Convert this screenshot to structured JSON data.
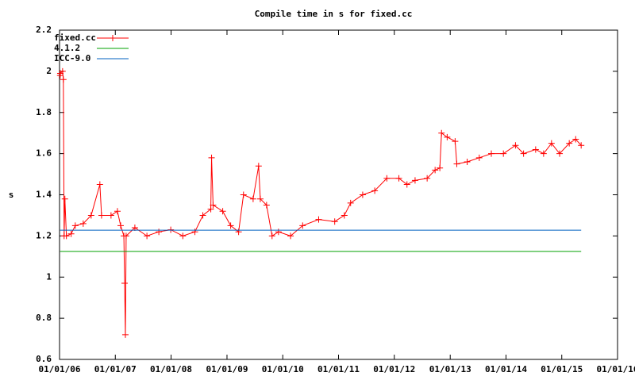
{
  "chart_data": {
    "type": "line",
    "title": "Compile time in s for fixed.cc",
    "y_label": "s",
    "xlim": [
      "2006-01-01",
      "2016-01-01"
    ],
    "xticks": [
      {
        "value": "2006-01-01",
        "label": "01/01/06"
      },
      {
        "value": "2007-01-01",
        "label": "01/01/07"
      },
      {
        "value": "2008-01-01",
        "label": "01/01/08"
      },
      {
        "value": "2009-01-01",
        "label": "01/01/09"
      },
      {
        "value": "2010-01-01",
        "label": "01/01/10"
      },
      {
        "value": "2011-01-01",
        "label": "01/01/11"
      },
      {
        "value": "2012-01-01",
        "label": "01/01/12"
      },
      {
        "value": "2013-01-01",
        "label": "01/01/13"
      },
      {
        "value": "2014-01-01",
        "label": "01/01/14"
      },
      {
        "value": "2015-01-01",
        "label": "01/01/15"
      },
      {
        "value": "2016-01-01",
        "label": "01/01/16"
      }
    ],
    "ylim": [
      0.6,
      2.2
    ],
    "yticks": [
      0.6,
      0.8,
      1,
      1.2,
      1.4,
      1.6,
      1.8,
      2,
      2.2
    ],
    "grid": false,
    "legend": "top-left",
    "series": [
      {
        "name": "fixed.cc",
        "color": "#ff0000",
        "markers": true,
        "x": [
          "2006-01-05",
          "2006-01-06",
          "2006-01-21",
          "2006-01-26",
          "2006-01-31",
          "2006-02-05",
          "2006-02-15",
          "2006-03-18",
          "2006-04-14",
          "2006-06-05",
          "2006-07-27",
          "2006-09-22",
          "2006-10-03",
          "2006-12-04",
          "2007-01-15",
          "2007-02-05",
          "2007-02-26",
          "2007-03-03",
          "2007-03-08",
          "2007-03-13",
          "2007-05-09",
          "2007-07-27",
          "2007-10-13",
          "2007-12-30",
          "2008-03-18",
          "2008-06-05",
          "2008-07-27",
          "2008-09-17",
          "2008-09-22",
          "2008-10-02",
          "2008-12-04",
          "2009-01-25",
          "2009-03-18",
          "2009-04-19",
          "2009-06-21",
          "2009-07-27",
          "2009-08-07",
          "2009-09-17",
          "2009-10-23",
          "2009-12-04",
          "2010-02-21",
          "2010-05-11",
          "2010-08-24",
          "2010-12-07",
          "2011-02-08",
          "2011-03-21",
          "2011-06-08",
          "2011-08-26",
          "2011-11-13",
          "2012-01-31",
          "2012-03-24",
          "2012-05-16",
          "2012-08-03",
          "2012-09-24",
          "2012-10-25",
          "2012-11-05",
          "2012-12-12",
          "2013-02-02",
          "2013-02-13",
          "2013-04-22",
          "2013-07-10",
          "2013-09-27",
          "2013-12-15",
          "2014-03-04",
          "2014-04-26",
          "2014-07-14",
          "2014-09-04",
          "2014-10-26",
          "2014-12-18",
          "2015-02-19",
          "2015-04-02",
          "2015-05-08"
        ],
        "values": [
          1.98,
          1.99,
          2.0,
          1.96,
          1.2,
          1.38,
          1.2,
          1.21,
          1.25,
          1.26,
          1.3,
          1.45,
          1.3,
          1.3,
          1.32,
          1.25,
          1.2,
          0.97,
          0.72,
          1.2,
          1.24,
          1.2,
          1.22,
          1.23,
          1.2,
          1.22,
          1.3,
          1.33,
          1.58,
          1.35,
          1.32,
          1.25,
          1.22,
          1.4,
          1.38,
          1.54,
          1.38,
          1.35,
          1.2,
          1.22,
          1.2,
          1.25,
          1.28,
          1.27,
          1.3,
          1.36,
          1.4,
          1.42,
          1.48,
          1.48,
          1.45,
          1.47,
          1.48,
          1.52,
          1.53,
          1.7,
          1.68,
          1.66,
          1.55,
          1.56,
          1.58,
          1.6,
          1.6,
          1.64,
          1.6,
          1.62,
          1.6,
          1.65,
          1.6,
          1.65,
          1.67,
          1.64
        ]
      },
      {
        "name": "4.1.2",
        "color": "#00a000",
        "markers": false,
        "x": [
          "2006-01-05",
          "2015-05-08"
        ],
        "values": [
          1.125,
          1.125
        ]
      },
      {
        "name": "ICC-9.0",
        "color": "#0060c0",
        "markers": false,
        "x": [
          "2006-01-05",
          "2015-05-08"
        ],
        "values": [
          1.228,
          1.228
        ]
      }
    ]
  }
}
